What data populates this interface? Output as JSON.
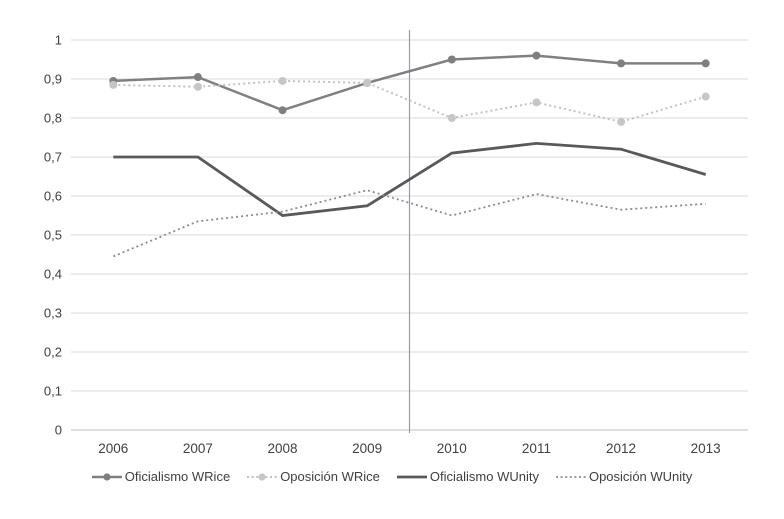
{
  "chart_data": {
    "type": "line",
    "title": "",
    "xlabel": "",
    "ylabel": "",
    "x": [
      "2006",
      "2007",
      "2008",
      "2009",
      "2010",
      "2011",
      "2012",
      "2013"
    ],
    "series": [
      {
        "name": "Oficialismo WRice",
        "values": [
          0.895,
          0.905,
          0.82,
          0.89,
          0.95,
          0.96,
          0.94,
          0.94
        ],
        "color": "#808080",
        "style": "solid",
        "marker": true,
        "marker_color": "#7f7f7f",
        "line_width": 2.5
      },
      {
        "name": "Oposición WRice",
        "values": [
          0.885,
          0.88,
          0.895,
          0.89,
          0.8,
          0.84,
          0.79,
          0.855
        ],
        "color": "#c2c2c2",
        "style": "dotted",
        "marker": true,
        "marker_color": "#c6c6c6",
        "line_width": 2
      },
      {
        "name": "Oficialismo WUnity",
        "values": [
          0.7,
          0.7,
          0.55,
          0.575,
          0.71,
          0.735,
          0.72,
          0.655
        ],
        "color": "#595959",
        "style": "solid",
        "marker": false,
        "marker_color": "#595959",
        "line_width": 2.8
      },
      {
        "name": "Oposición WUnity",
        "values": [
          0.445,
          0.535,
          0.56,
          0.615,
          0.55,
          0.605,
          0.565,
          0.58
        ],
        "color": "#8c8c8c",
        "style": "dotted",
        "marker": false,
        "marker_color": "#8c8c8c",
        "line_width": 1.8
      }
    ],
    "ylim": [
      0,
      1
    ],
    "ytick_values": [
      1,
      0.9,
      0.8,
      0.7,
      0.6,
      0.5,
      0.4,
      0.3,
      0.2,
      0.1,
      0
    ],
    "ytick_labels": [
      "1",
      "0,9",
      "0,8",
      "0,7",
      "0,6",
      "0,5",
      "0,4",
      "0,3",
      "0,2",
      "0,1",
      "0"
    ],
    "grid": true,
    "legend_position": "bottom",
    "reference_line": {
      "x": 2009.5,
      "color": "#7ea1c8"
    }
  },
  "colors": {
    "background": "#ffffff",
    "gridline": "#d9d9d9",
    "axis_line": "#bfbfbf",
    "text": "#404040"
  }
}
